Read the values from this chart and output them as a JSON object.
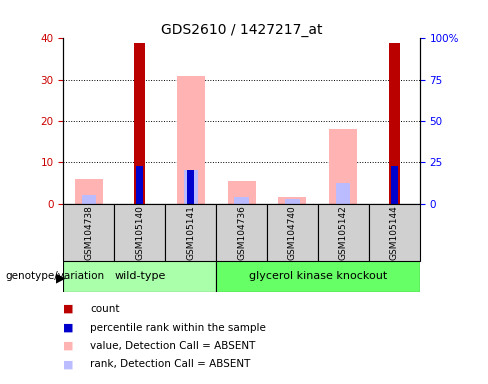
{
  "title": "GDS2610 / 1427217_at",
  "samples": [
    "GSM104738",
    "GSM105140",
    "GSM105141",
    "GSM104736",
    "GSM104740",
    "GSM105142",
    "GSM105144"
  ],
  "wt_indices": [
    0,
    1,
    2
  ],
  "ko_indices": [
    3,
    4,
    5,
    6
  ],
  "count_values": [
    0,
    39,
    0,
    0,
    0,
    0,
    39
  ],
  "percentile_rank_values": [
    0,
    9,
    8,
    0,
    0,
    0,
    9
  ],
  "pink_value_absent": [
    6,
    0,
    31,
    5.5,
    1.5,
    18,
    0
  ],
  "blue_rank_absent": [
    2,
    0,
    8,
    1.5,
    1,
    5,
    0
  ],
  "ylim_left": [
    0,
    40
  ],
  "ylim_right": [
    0,
    100
  ],
  "yticks_left": [
    0,
    10,
    20,
    30,
    40
  ],
  "yticks_right": [
    0,
    25,
    50,
    75,
    100
  ],
  "ytick_labels_right": [
    "0",
    "25",
    "50",
    "75",
    "100%"
  ],
  "color_count": "#bb0000",
  "color_percentile": "#0000cc",
  "color_pink": "#ffb3b3",
  "color_blue_light": "#bbbbff",
  "color_group_wt": "#aaffaa",
  "color_group_ko": "#66ff66",
  "bg_color": "#ffffff",
  "legend_entries": [
    {
      "label": "count",
      "color": "#bb0000"
    },
    {
      "label": "percentile rank within the sample",
      "color": "#0000cc"
    },
    {
      "label": "value, Detection Call = ABSENT",
      "color": "#ffb3b3"
    },
    {
      "label": "rank, Detection Call = ABSENT",
      "color": "#bbbbff"
    }
  ]
}
